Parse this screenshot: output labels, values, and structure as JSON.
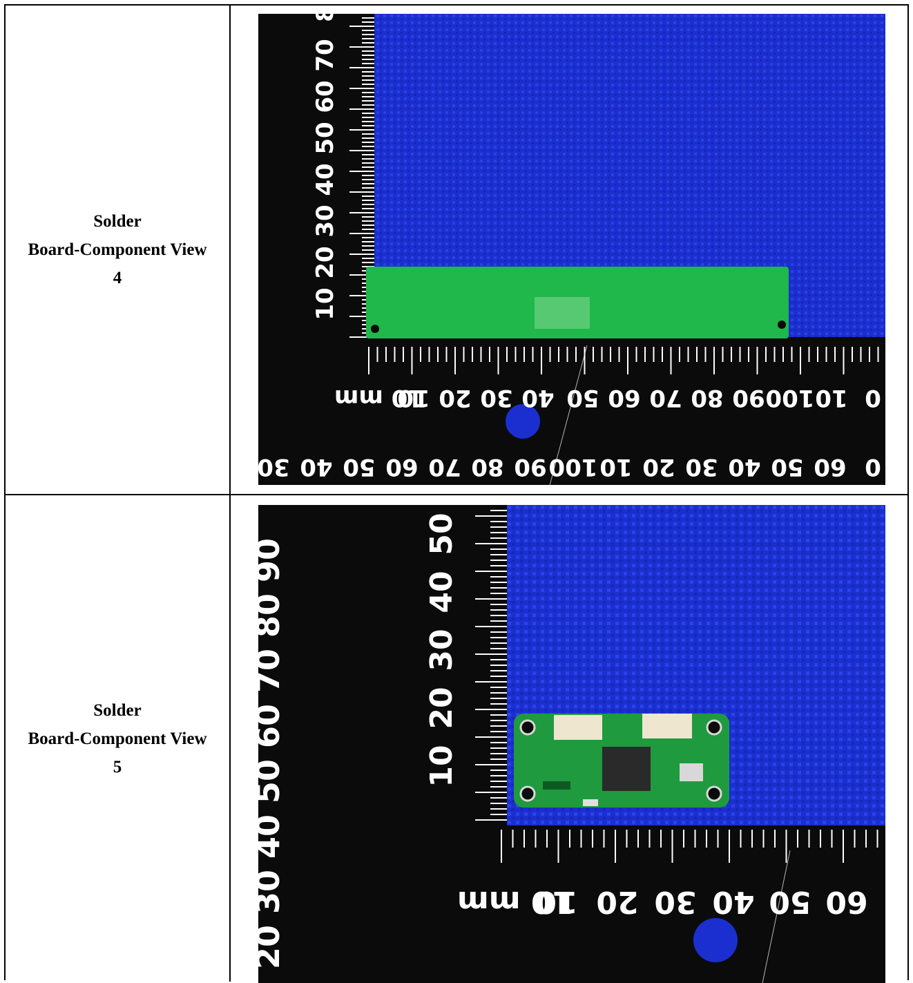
{
  "rows": [
    {
      "title": "Solder",
      "subtitle": "Board-Component View",
      "number": "4",
      "photo": {
        "icon": "pcb-measurement-photo",
        "vertical_ruler_labels": [
          "10",
          "20",
          "30",
          "40",
          "50",
          "60",
          "70",
          "8"
        ],
        "horizontal_ruler_labels": [
          "10 mm",
          "10",
          "20",
          "30",
          "40",
          "50",
          "60",
          "70",
          "80",
          "90",
          "100",
          "10",
          "0"
        ],
        "bottom_ruler_labels": [
          "30",
          "40",
          "50",
          "60",
          "70",
          "80",
          "90",
          "100",
          "10",
          "20",
          "30",
          "40",
          "50",
          "60",
          "0"
        ],
        "colors": {
          "mat": "#1b2fd0",
          "ruler": "#0b0b0b",
          "board": "#20b84a"
        }
      }
    },
    {
      "title": "Solder",
      "subtitle": "Board-Component View",
      "number": "5",
      "photo": {
        "icon": "pcb-measurement-photo",
        "vertical_ruler_labels": [
          "10",
          "20",
          "30",
          "40",
          "50"
        ],
        "left_ruler_labels": [
          "20",
          "30",
          "40",
          "50",
          "60",
          "70",
          "80",
          "90"
        ],
        "horizontal_ruler_labels": [
          "10 mm",
          "10",
          "20",
          "30",
          "40",
          "50",
          "60"
        ],
        "colors": {
          "mat": "#1b2fd0",
          "ruler": "#0b0b0b",
          "board": "#1f9a3e"
        }
      }
    }
  ]
}
